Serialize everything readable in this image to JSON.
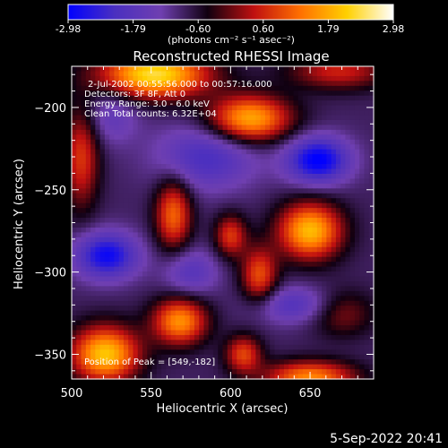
{
  "chart_data": {
    "type": "heatmap",
    "title": "Reconstructed RHESSI Image",
    "xlabel": "Heliocentric X (arcsec)",
    "ylabel": "Heliocentric Y (arcsec)",
    "xlim": [
      500,
      690
    ],
    "ylim": [
      -365,
      -175
    ],
    "xticks": [
      500,
      550,
      600,
      650
    ],
    "yticks": [
      -350,
      -300,
      -250,
      -200
    ],
    "colorbar": {
      "min": -2.98,
      "max": 2.98,
      "ticks": [
        "-2.98",
        "-1.79",
        "-0.60",
        "0.60",
        "1.79",
        "2.98"
      ],
      "unit_label": "(photons cm⁻² s⁻¹ asec⁻²)",
      "colormap": [
        "#0000ff",
        "#4a2fc0",
        "#6f3fb0",
        "#100010",
        "#c01010",
        "#ff7000",
        "#ffd000",
        "#ffffff"
      ]
    },
    "annotations": [
      "2-Jul-2002 00:55:56.000 to 00:57:16.000",
      "Detectors: 3F 8F, Att 0",
      "Energy Range: 3.0 - 6.0 keV",
      "Clean     Total counts: 6.32E+04",
      "Position of Peak = [549,-182]"
    ],
    "peak": [
      549,
      -182
    ],
    "sources": [
      {
        "x": 552,
        "y": -180,
        "sx": 24,
        "sy": 10,
        "amp": 3.2
      },
      {
        "x": 612,
        "y": -207,
        "sx": 18,
        "sy": 10,
        "amp": 2.7
      },
      {
        "x": 668,
        "y": -178,
        "sx": 22,
        "sy": 8,
        "amp": 1.4
      },
      {
        "x": 650,
        "y": -275,
        "sx": 14,
        "sy": 12,
        "amp": 2.8
      },
      {
        "x": 618,
        "y": -302,
        "sx": 8,
        "sy": 12,
        "amp": 1.8
      },
      {
        "x": 600,
        "y": -278,
        "sx": 7,
        "sy": 9,
        "amp": 1.6
      },
      {
        "x": 564,
        "y": -265,
        "sx": 8,
        "sy": 15,
        "amp": 2.0
      },
      {
        "x": 521,
        "y": -350,
        "sx": 15,
        "sy": 12,
        "amp": 2.9
      },
      {
        "x": 568,
        "y": -330,
        "sx": 12,
        "sy": 10,
        "amp": 2.4
      },
      {
        "x": 608,
        "y": -350,
        "sx": 8,
        "sy": 8,
        "amp": 1.7
      },
      {
        "x": 650,
        "y": -364,
        "sx": 20,
        "sy": 7,
        "amp": 2.3
      },
      {
        "x": 670,
        "y": -325,
        "sx": 14,
        "sy": 10,
        "amp": 1.0
      },
      {
        "x": 506,
        "y": -230,
        "sx": 8,
        "sy": 22,
        "amp": 1.6
      },
      {
        "x": 655,
        "y": -232,
        "sx": 14,
        "sy": 10,
        "amp": -2.2
      },
      {
        "x": 522,
        "y": -290,
        "sx": 14,
        "sy": 10,
        "amp": -2.0
      },
      {
        "x": 585,
        "y": -230,
        "sx": 22,
        "sy": 14,
        "amp": -1.3
      },
      {
        "x": 575,
        "y": -300,
        "sx": 12,
        "sy": 10,
        "amp": -1.0
      },
      {
        "x": 640,
        "y": -320,
        "sx": 18,
        "sy": 8,
        "amp": -1.1
      },
      {
        "x": 525,
        "y": -205,
        "sx": 12,
        "sy": 12,
        "amp": -0.8
      }
    ],
    "base_level": -0.85
  },
  "footer": {
    "timestamp": "5-Sep-2022 20:41"
  }
}
